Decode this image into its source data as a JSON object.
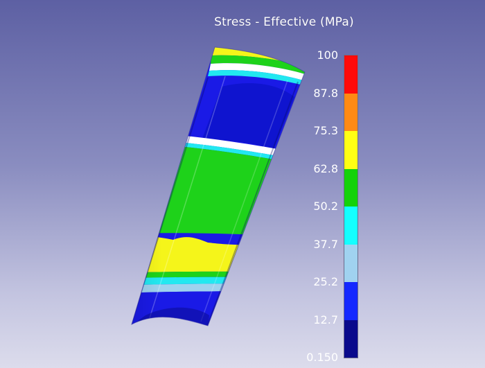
{
  "legend": {
    "title": "Stress - Effective (MPa)",
    "ticks": [
      "100",
      "87.8",
      "75.3",
      "62.8",
      "50.2",
      "37.7",
      "25.2",
      "12.7",
      "0.150"
    ],
    "colors": [
      "#ff0a0a",
      "#ff8a14",
      "#ffff14",
      "#14d20a",
      "#14ffff",
      "#a0d2f0",
      "#1428ff",
      "#0a0a8c"
    ]
  },
  "part": {
    "colors": {
      "blue": "#1a1ae6",
      "dark_blue": "#0c12c4",
      "green": "#1ed21a",
      "yellow": "#f5f51a",
      "cyan": "#22e8f0",
      "light_blue": "#9ed2ee",
      "white": "#ffffff"
    }
  }
}
